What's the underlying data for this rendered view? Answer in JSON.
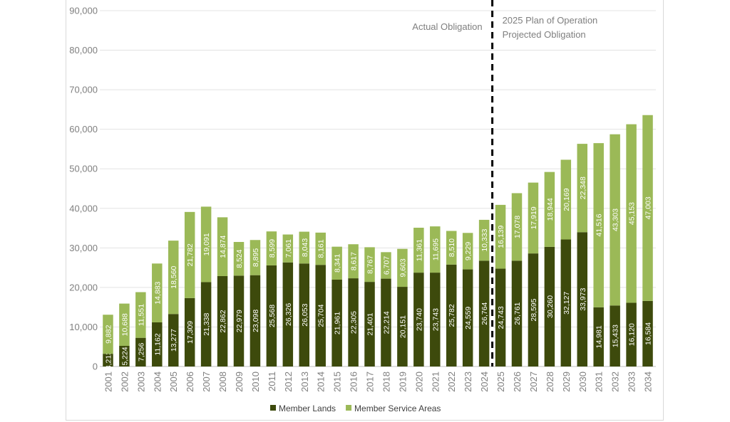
{
  "chart_data": {
    "type": "bar",
    "stacked": true,
    "title": "",
    "xlabel": "",
    "ylabel": "",
    "ylim": [
      0,
      90000
    ],
    "yticks": [
      "0",
      "10,000",
      "20,000",
      "30,000",
      "40,000",
      "50,000",
      "60,000",
      "70,000",
      "80,000",
      "90,000"
    ],
    "grid": true,
    "legend_position": "bottom",
    "categories": [
      "2001",
      "2002",
      "2003",
      "2004",
      "2005",
      "2006",
      "2007",
      "2008",
      "2009",
      "2010",
      "2011",
      "2012",
      "2013",
      "2014",
      "2015",
      "2016",
      "2017",
      "2018",
      "2019",
      "2020",
      "2021",
      "2022",
      "2023",
      "2024",
      "2025",
      "2026",
      "2027",
      "2028",
      "2029",
      "2030",
      "2031",
      "2032",
      "2033",
      "2034"
    ],
    "series": [
      {
        "name": "Member Lands",
        "color": "#3d4a0c",
        "values": [
          3213,
          5224,
          7256,
          11162,
          13277,
          17309,
          21338,
          22862,
          22979,
          23098,
          25568,
          26326,
          26053,
          25704,
          21961,
          22305,
          21401,
          22214,
          20151,
          23740,
          23743,
          25782,
          24559,
          26764,
          24743,
          26761,
          28595,
          30260,
          32127,
          33973,
          14981,
          15433,
          16120,
          16584
        ],
        "labels": [
          "3,213",
          "5,224",
          "7,256",
          "11,162",
          "13,277",
          "17,309",
          "21,338",
          "22,862",
          "22,979",
          "23,098",
          "25,568",
          "26,326",
          "26,053",
          "25,704",
          "21,961",
          "22,305",
          "21,401",
          "22,214",
          "20,151",
          "23,740",
          "23,743",
          "25,782",
          "24,559",
          "26,764",
          "24,743",
          "26,761",
          "28,595",
          "30,260",
          "32,127",
          "33,973",
          "14,981",
          "15,433",
          "16,120",
          "16,584"
        ]
      },
      {
        "name": "Member Service Areas",
        "color": "#9bb957",
        "values": [
          9882,
          10688,
          11551,
          14883,
          18560,
          21782,
          19091,
          14874,
          8524,
          8895,
          8599,
          7061,
          8043,
          8161,
          8341,
          8617,
          8767,
          6707,
          9603,
          11361,
          11695,
          8510,
          9229,
          10333,
          16139,
          17078,
          17919,
          18944,
          20169,
          22348,
          41516,
          43303,
          45153,
          47003
        ],
        "labels": [
          "9,882",
          "10,688",
          "11,551",
          "14,883",
          "18,560",
          "21,782",
          "19,091",
          "14,874",
          "8,524",
          "8,895",
          "8,599",
          "7,061",
          "8,043",
          "8,161",
          "8,341",
          "8,617",
          "8,767",
          "6,707",
          "9,603",
          "11,361",
          "11,695",
          "8,510",
          "9,229",
          "10,333",
          "16,139",
          "17,078",
          "17,919",
          "18,944",
          "20,169",
          "22,348",
          "41,516",
          "43,303",
          "45,153",
          "47,003"
        ]
      }
    ],
    "annotations": {
      "divider_between": [
        "2024",
        "2025"
      ],
      "left_label": "Actual Obligation",
      "right_label_line1": "2025 Plan of Operation",
      "right_label_line2": "Projected Obligation"
    }
  }
}
